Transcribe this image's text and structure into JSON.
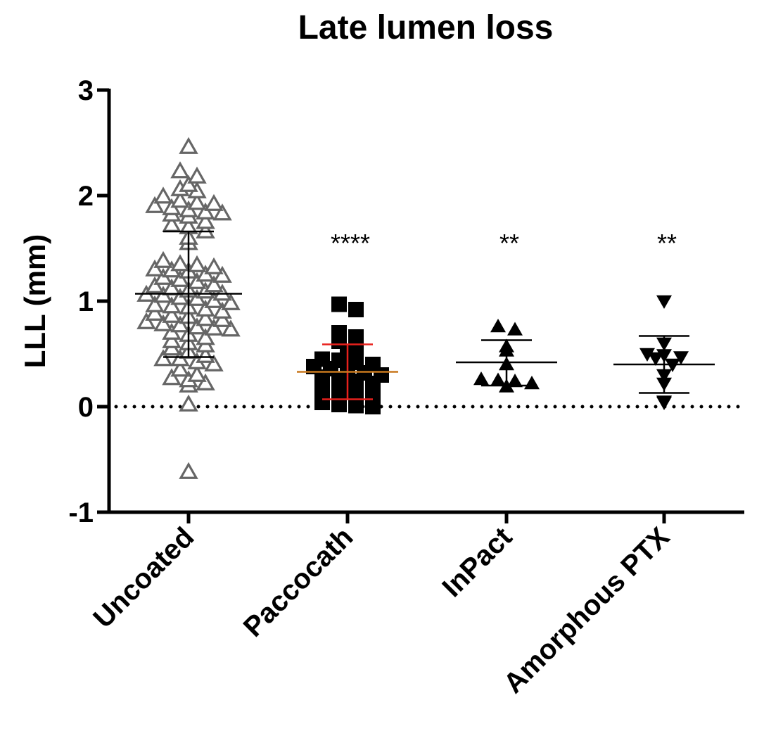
{
  "chart_data": {
    "type": "scatter",
    "title": "Late lumen loss",
    "ylabel": "LLL (mm)",
    "xlabel": "",
    "ylim": [
      -1,
      3
    ],
    "yticks": [
      -1,
      0,
      1,
      2,
      3
    ],
    "ytick_labels": [
      "-1",
      "0",
      "1",
      "2",
      "3"
    ],
    "reference_line": {
      "y": 0,
      "style": "dotted"
    },
    "categories": [
      "Uncoated",
      "Paccocath",
      "InPact",
      "Amorphous PTX"
    ],
    "groups": [
      {
        "category": "Uncoated",
        "marker": "triangle-up-open",
        "color": "#666666",
        "significance": "",
        "mean": 1.07,
        "sd_low": 0.47,
        "sd_high": 1.66,
        "values": [
          2.46,
          2.23,
          2.18,
          2.1,
          2.06,
          2.04,
          1.99,
          1.95,
          1.93,
          1.92,
          1.9,
          1.88,
          1.86,
          1.84,
          1.83,
          1.82,
          1.8,
          1.75,
          1.72,
          1.7,
          1.66,
          1.6,
          1.55,
          1.38,
          1.35,
          1.34,
          1.32,
          1.3,
          1.29,
          1.28,
          1.25,
          1.24,
          1.22,
          1.2,
          1.18,
          1.15,
          1.14,
          1.12,
          1.1,
          1.09,
          1.07,
          1.06,
          1.05,
          1.03,
          1.02,
          1.0,
          0.98,
          0.96,
          0.95,
          0.94,
          0.92,
          0.9,
          0.88,
          0.86,
          0.85,
          0.83,
          0.82,
          0.8,
          0.78,
          0.77,
          0.75,
          0.74,
          0.73,
          0.7,
          0.68,
          0.65,
          0.62,
          0.6,
          0.58,
          0.55,
          0.52,
          0.48,
          0.45,
          0.45,
          0.42,
          0.4,
          0.35,
          0.3,
          0.27,
          0.25,
          0.22,
          0.2,
          0.02,
          -0.62
        ]
      },
      {
        "category": "Paccocath",
        "marker": "square-filled",
        "color": "#000000",
        "significance": "****",
        "mean": 0.33,
        "sd_low": 0.07,
        "sd_high": 0.59,
        "mean_color": "#c8781e",
        "sd_color": "#e8211c",
        "values": [
          0.97,
          0.92,
          0.7,
          0.66,
          0.62,
          0.56,
          0.52,
          0.45,
          0.44,
          0.42,
          0.4,
          0.38,
          0.36,
          0.34,
          0.32,
          0.3,
          0.28,
          0.26,
          0.24,
          0.22,
          0.2,
          0.18,
          0.16,
          0.14,
          0.12,
          0.1,
          0.08,
          0.06,
          0.04,
          0.02,
          0.01,
          0.0
        ]
      },
      {
        "category": "InPact",
        "marker": "triangle-up-filled",
        "color": "#000000",
        "significance": "**",
        "mean": 0.42,
        "sd_low": 0.2,
        "sd_high": 0.63,
        "values": [
          0.76,
          0.73,
          0.57,
          0.53,
          0.4,
          0.26,
          0.25,
          0.24,
          0.22,
          0.19
        ]
      },
      {
        "category": "Amorphous PTX",
        "marker": "triangle-down-filled",
        "color": "#000000",
        "significance": "**",
        "mean": 0.4,
        "sd_low": 0.13,
        "sd_high": 0.67,
        "values": [
          1.0,
          0.6,
          0.5,
          0.49,
          0.47,
          0.46,
          0.4,
          0.3,
          0.22,
          0.05,
          0.04
        ]
      }
    ]
  }
}
